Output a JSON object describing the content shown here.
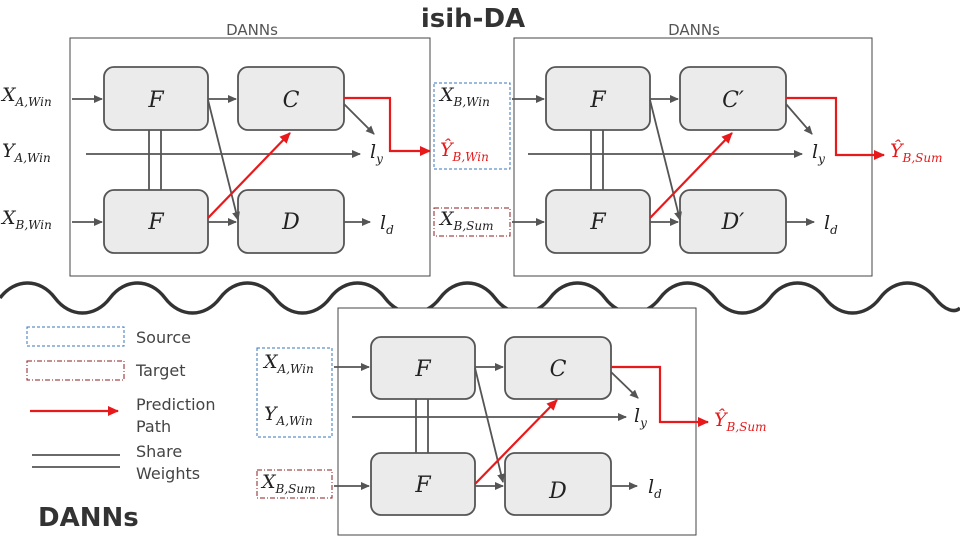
{
  "title": "isih-DA",
  "bottom_title": "DANNs",
  "frames": {
    "left": "DANNs",
    "right": "DANNs"
  },
  "modules": {
    "F": "F",
    "C": "C",
    "D": "D",
    "C_prime": "C′",
    "D_prime": "D′"
  },
  "variables": {
    "x_a": {
      "base": "X",
      "sub": "A,Win"
    },
    "y_a": {
      "base": "Y",
      "sub": "A,Win"
    },
    "x_b": {
      "base": "X",
      "sub": "B,Win"
    },
    "x_b_sum": {
      "base": "X",
      "sub": "B,Sum"
    },
    "yhat_b_win": {
      "base": "Ŷ",
      "sub": "B,Win"
    },
    "yhat_b_sum": {
      "base": "Ŷ",
      "sub": "B,Sum"
    },
    "l_y": {
      "base": "l",
      "sub": "y"
    },
    "l_d": {
      "base": "l",
      "sub": "d"
    }
  },
  "legend": {
    "source": "Source",
    "target": "Target",
    "prediction_1": "Prediction",
    "prediction_2": "Path",
    "share_1": "Share",
    "share_2": "Weights"
  },
  "colors": {
    "prediction": "#e8191b",
    "source": "#3a76b8",
    "target": "#8c1d1d",
    "module_fill": "#ebebeb",
    "line": "#555555"
  }
}
